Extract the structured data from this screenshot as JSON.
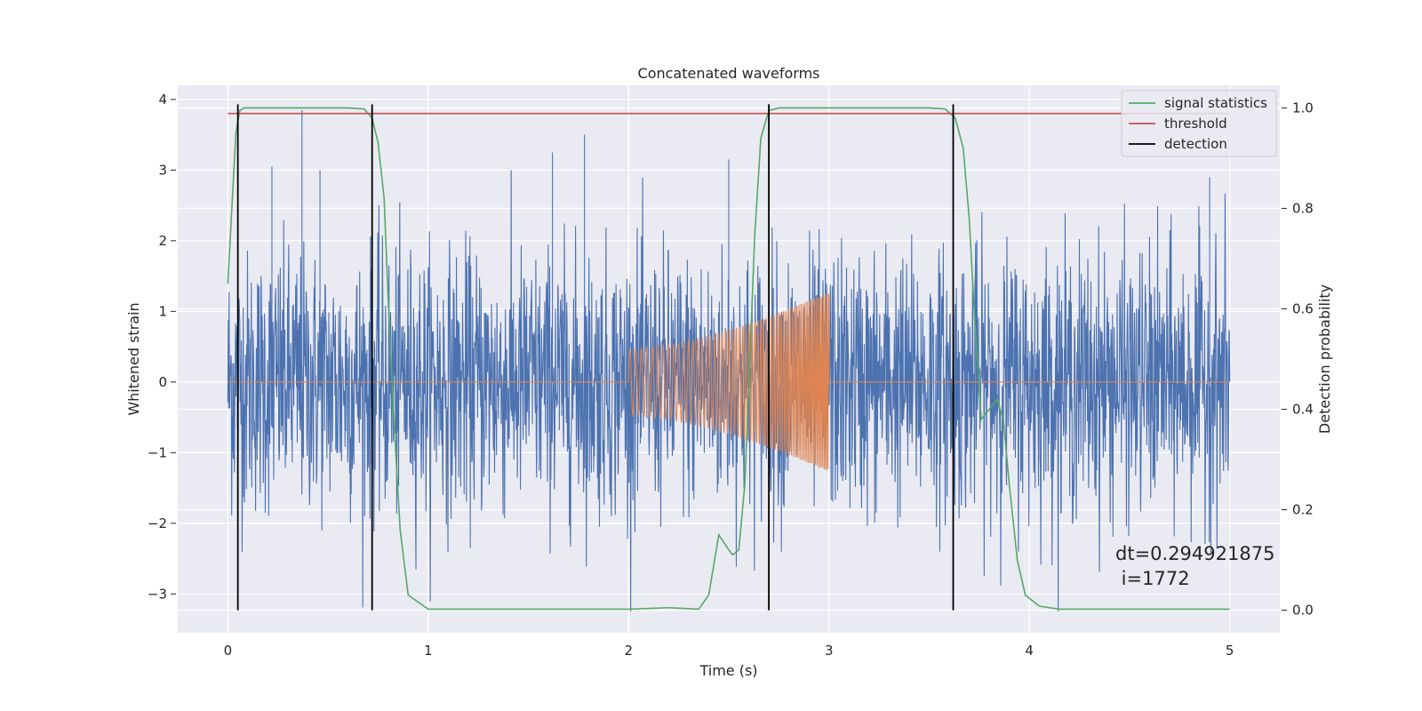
{
  "chart_data": {
    "type": "line",
    "title": "Concatenated waveforms",
    "xlabel": "Time (s)",
    "ylabel": "Whitened strain",
    "y2label": "Detection probability",
    "xlim": [
      -0.25,
      5.25
    ],
    "ylim": [
      -3.55,
      4.2
    ],
    "y2lim": [
      -0.045,
      1.045
    ],
    "xticks": [
      "0",
      "1",
      "2",
      "3",
      "4",
      "5"
    ],
    "yticks": [
      "4",
      "3",
      "2",
      "1",
      "0",
      "−1",
      "−2",
      "−3"
    ],
    "y2ticks": [
      "1.0",
      "0.8",
      "0.6",
      "0.4",
      "0.2",
      "0.0"
    ],
    "grid": true,
    "legend_position": "upper right",
    "series": [
      {
        "name": "",
        "axis": "left",
        "color": "#4c72b0",
        "kind": "noise",
        "x_range": [
          0,
          5
        ],
        "envelope_typical": 2.2,
        "tallest_peaks": [
          {
            "x": 0.37,
            "y": 3.85
          },
          {
            "x": 0.22,
            "y": 3.05
          },
          {
            "x": 0.46,
            "y": 3.0
          },
          {
            "x": 1.62,
            "y": 3.25
          },
          {
            "x": 1.78,
            "y": 3.5
          },
          {
            "x": 2.5,
            "y": 3.15
          },
          {
            "x": 4.9,
            "y": 2.9
          }
        ]
      },
      {
        "name": "",
        "axis": "left",
        "color": "#dd8452",
        "kind": "chirp",
        "x_range": [
          0,
          5
        ],
        "chirp_start": 2.0,
        "chirp_end": 3.0,
        "amplitude_start": 0.47,
        "amplitude_end": 1.28,
        "freq_start_hz": 35,
        "freq_end_hz": 120
      },
      {
        "name": "signal statistics",
        "axis": "right",
        "color": "#55a868",
        "x": [
          0,
          0.02,
          0.04,
          0.06,
          0.08,
          0.1,
          0.6,
          0.68,
          0.72,
          0.75,
          0.78,
          0.8,
          0.83,
          0.86,
          0.9,
          1.0,
          1.5,
          2.0,
          2.2,
          2.35,
          2.4,
          2.45,
          2.5,
          2.52,
          2.55,
          2.58,
          2.6,
          2.63,
          2.66,
          2.7,
          2.75,
          2.8,
          3.5,
          3.58,
          3.63,
          3.67,
          3.7,
          3.73,
          3.76,
          3.8,
          3.84,
          3.87,
          3.9,
          3.94,
          3.98,
          4.05,
          4.15,
          4.5,
          5.0
        ],
        "y": [
          0.65,
          0.8,
          0.95,
          0.995,
          1.0,
          1.0,
          1.0,
          0.998,
          0.98,
          0.93,
          0.82,
          0.62,
          0.37,
          0.16,
          0.03,
          0.002,
          0.002,
          0.002,
          0.005,
          0.002,
          0.03,
          0.15,
          0.12,
          0.11,
          0.12,
          0.25,
          0.45,
          0.75,
          0.94,
          0.995,
          1.0,
          1.0,
          1.0,
          0.998,
          0.98,
          0.92,
          0.78,
          0.56,
          0.38,
          0.4,
          0.42,
          0.38,
          0.25,
          0.1,
          0.03,
          0.008,
          0.002,
          0.002,
          0.002
        ]
      },
      {
        "name": "threshold",
        "axis": "right",
        "color": "#c44e52",
        "x": [
          0,
          5
        ],
        "y": [
          0.989,
          0.989
        ]
      },
      {
        "name": "detection",
        "axis": "right",
        "color": "#000000",
        "vlines_x": [
          0.05,
          0.72,
          2.7,
          3.62
        ],
        "y": [
          0,
          1.0
        ]
      }
    ],
    "annotation": {
      "line1": "dt=0.294921875",
      "line2": " i=1772"
    }
  }
}
